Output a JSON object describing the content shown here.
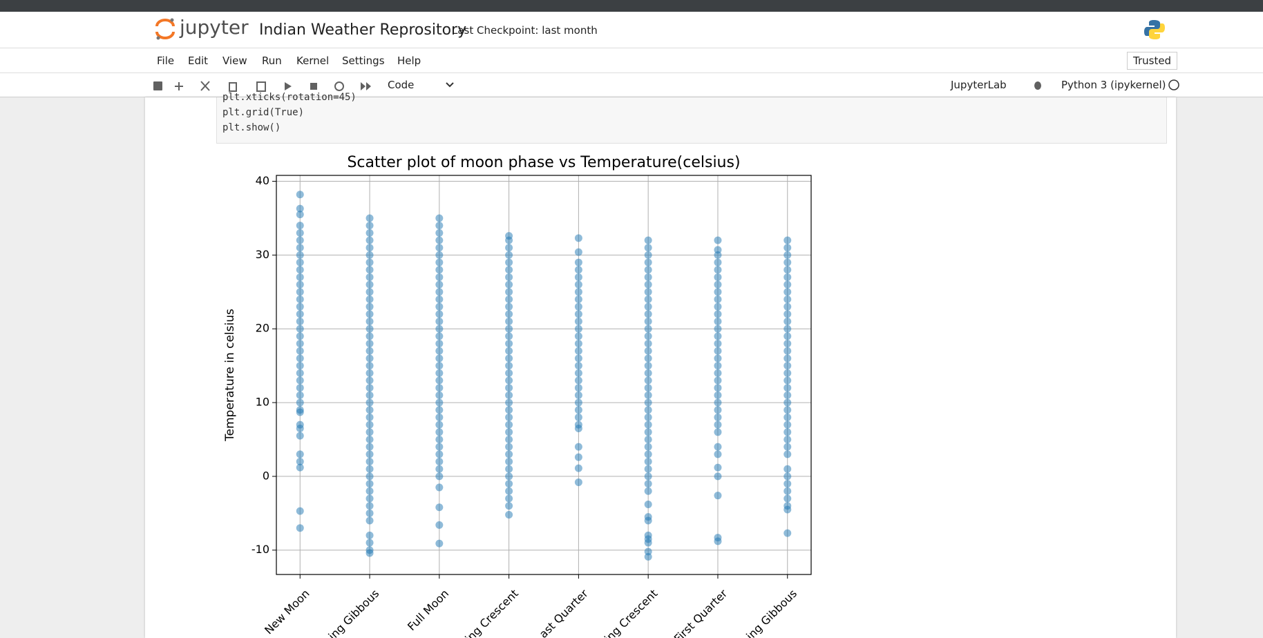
{
  "ui": {
    "logo": "jupyter",
    "notebook_title": "Indian Weather Reprository",
    "checkpoint": "Last Checkpoint: last month",
    "menu": [
      "File",
      "Edit",
      "View",
      "Run",
      "Kernel",
      "Settings",
      "Help"
    ],
    "trusted": "Trusted",
    "cell_type": "Code",
    "jupyterlab": "JupyterLab",
    "kernel": "Python 3 (ipykernel)",
    "code_lines": [
      "plt.xticks(rotation=45)",
      "plt.grid(True)",
      "plt.show()"
    ]
  },
  "chart_data": {
    "type": "scatter",
    "title": "Scatter plot of moon phase vs Temperature(celsius)",
    "y_label": "Temperature in celsius",
    "categories": [
      "New Moon",
      "ing Gibbous",
      "Full Moon",
      "ing Crescent",
      "ast Quarter",
      "ing Crescent",
      "First Quarter",
      "ing Gibbous"
    ],
    "points": [
      [
        38.2,
        36.3,
        35.5,
        34,
        33,
        32,
        31,
        30,
        29,
        28,
        27,
        26,
        25,
        24,
        23,
        22,
        21,
        20,
        19,
        18,
        17,
        16,
        15,
        14,
        13,
        12,
        11,
        10,
        9,
        8.7,
        7,
        6.5,
        5.5,
        3,
        2,
        1.2,
        -4.7,
        -7
      ],
      [
        35,
        34,
        33,
        32,
        31,
        30,
        29,
        28,
        27,
        26,
        25,
        24,
        23,
        22,
        21,
        20,
        19,
        18,
        17,
        16,
        15,
        14,
        13,
        12,
        11,
        10,
        9,
        8,
        7,
        6,
        5,
        4,
        3,
        2,
        1,
        0,
        -1,
        -2,
        -3,
        -4,
        -5,
        -6,
        -8,
        -9,
        -10,
        -10.4
      ],
      [
        35,
        34,
        33,
        32,
        31,
        30,
        29,
        28,
        27,
        26,
        25,
        24,
        23,
        22,
        21,
        20,
        19,
        18,
        17,
        16,
        15,
        14,
        13,
        12,
        11,
        10,
        9,
        8,
        7,
        6,
        5,
        4,
        3,
        2,
        1,
        0,
        -1.5,
        -4.2,
        -6.6,
        -9.1
      ],
      [
        32.6,
        32,
        31,
        30,
        29,
        28,
        27,
        26,
        25,
        24,
        23,
        22,
        21,
        20,
        19,
        18,
        17,
        16,
        15,
        14,
        13,
        12,
        11,
        10,
        9,
        8,
        7,
        6,
        5,
        4,
        3,
        2,
        1,
        0,
        -1,
        -2,
        -3,
        -4,
        -5.2
      ],
      [
        32.3,
        30.4,
        29,
        28,
        27,
        26,
        25,
        24,
        23,
        22,
        21,
        20,
        19,
        18,
        17,
        16,
        15,
        14,
        13,
        12,
        11,
        10,
        9,
        8,
        7,
        6.5,
        4,
        2.6,
        1.1,
        -0.8
      ],
      [
        32,
        31,
        30,
        29,
        28,
        27,
        26,
        25,
        24,
        23,
        22,
        21,
        20,
        19,
        18,
        17,
        16,
        15,
        14,
        13,
        12,
        11,
        10,
        9,
        8,
        7,
        6,
        5,
        4,
        3,
        2,
        1,
        0,
        -1,
        -2,
        -3.8,
        -5.5,
        -6,
        -8,
        -8.5,
        -9,
        -10.2,
        -10.9
      ],
      [
        32,
        30.7,
        30,
        29,
        28,
        27,
        26,
        25,
        24,
        23,
        22,
        21,
        20,
        19,
        18,
        17,
        16,
        15,
        14,
        13,
        12,
        11,
        10,
        9,
        8,
        7,
        6,
        4,
        3,
        1.2,
        0,
        -2.6,
        -8.3,
        -8.8
      ],
      [
        32,
        31,
        30,
        29,
        28,
        27,
        26,
        25,
        24,
        23,
        22,
        21,
        20,
        19,
        18,
        17,
        16,
        15,
        14,
        13,
        12,
        11,
        10,
        9,
        8,
        7,
        6,
        5,
        4,
        3,
        1,
        0,
        -1,
        -2,
        -3,
        -4,
        -4.5,
        -7.7
      ]
    ],
    "color": "#1f77b4",
    "alpha": 0.5,
    "ylim": [
      -13.3,
      40.8
    ],
    "yticks": [
      -10,
      0,
      10,
      20,
      30,
      40
    ],
    "grid": true
  }
}
